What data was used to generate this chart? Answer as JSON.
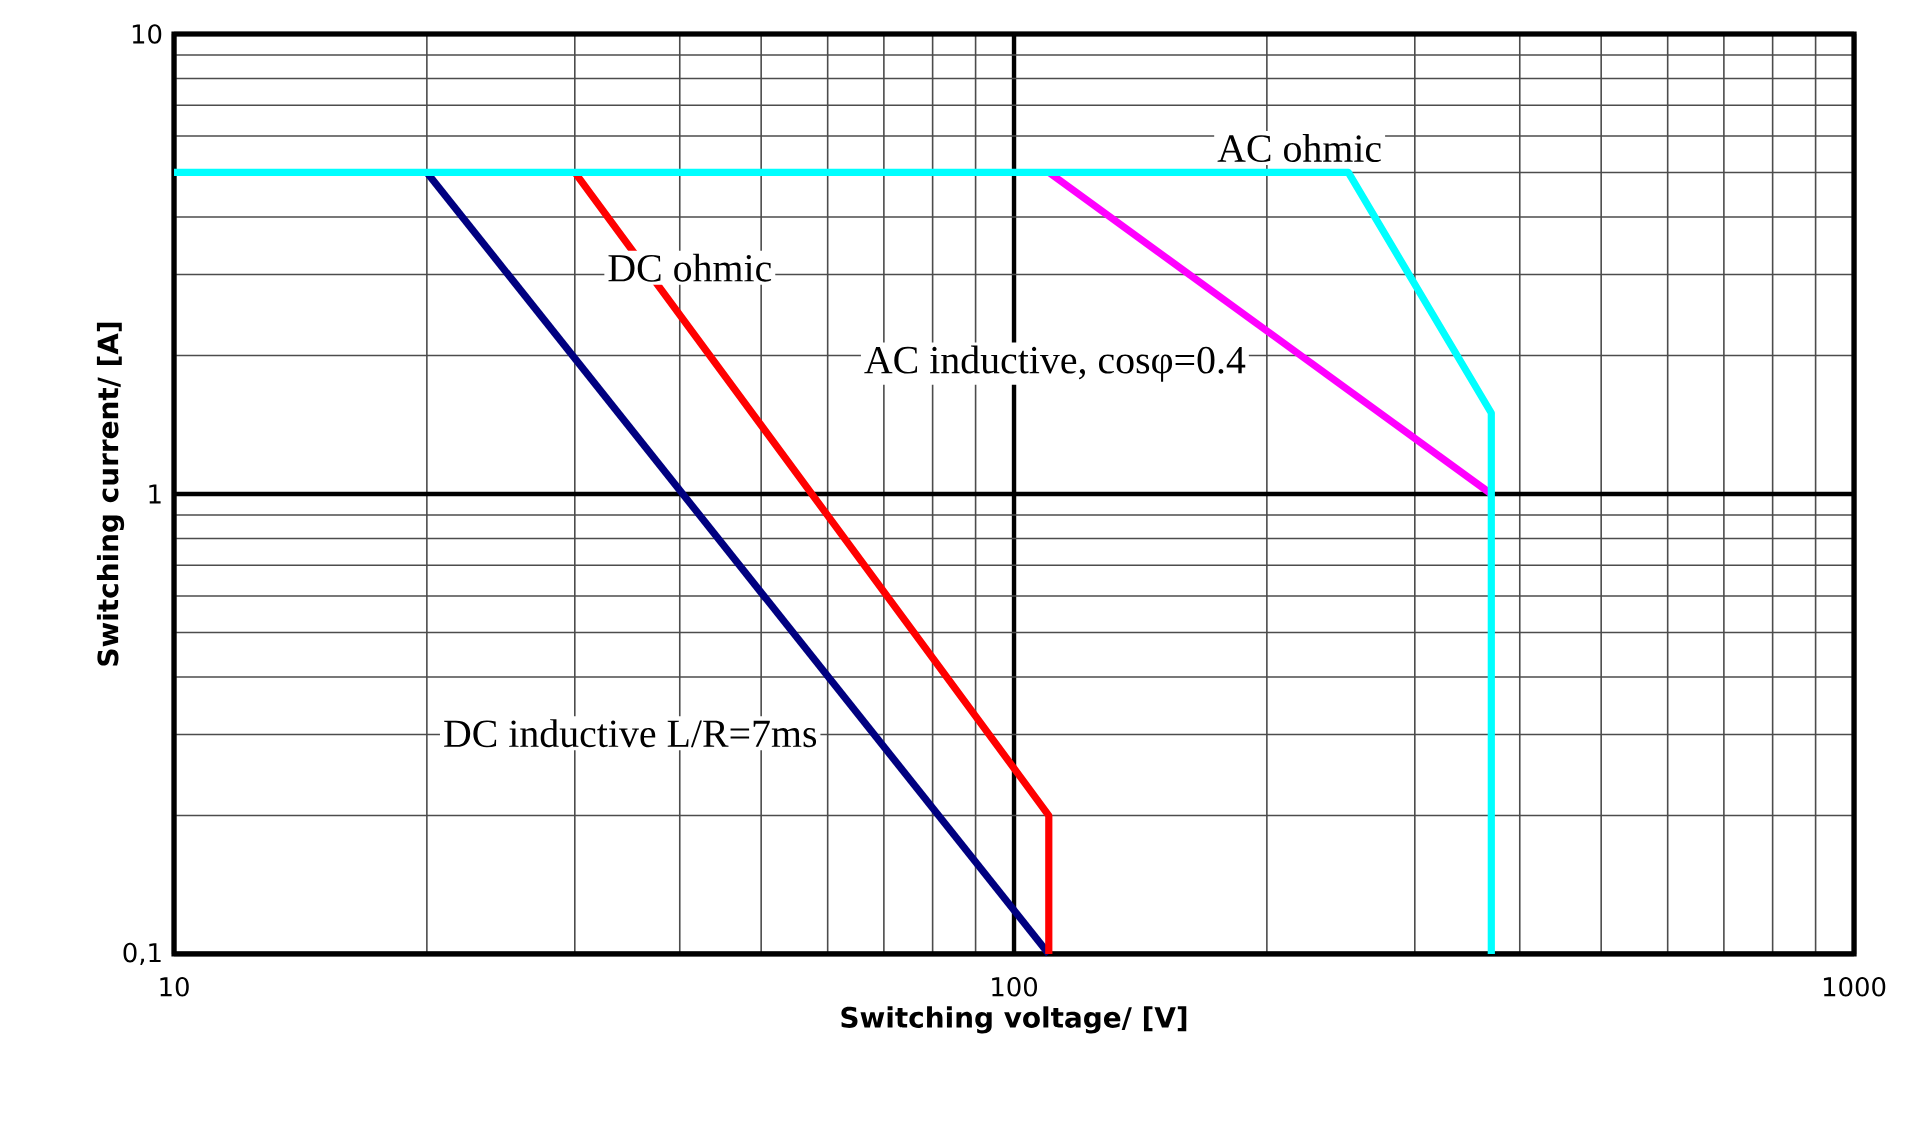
{
  "chart_data": {
    "type": "line",
    "xlabel": "Switching voltage/ [V]",
    "ylabel": "Switching current/ [A]",
    "log": "xy",
    "grid": true,
    "marker": "none",
    "line_style": "solid",
    "xlim": [
      10,
      1000
    ],
    "ylim": [
      0.1,
      10
    ],
    "xticks": [
      10,
      100,
      1000
    ],
    "yticks": [
      {
        "value": 0.1,
        "label": "0,1"
      },
      1,
      10
    ],
    "series": [
      {
        "name": "DC inductive L/R=7ms",
        "color": "#000080",
        "x": [
          20,
          110
        ],
        "values": [
          5,
          0.1
        ]
      },
      {
        "name": "DC ohmic",
        "color": "#ff0000",
        "x": [
          30,
          110,
          110
        ],
        "values": [
          5,
          0.2,
          0.1
        ]
      },
      {
        "name": "AC inductive, cosφ=0.4",
        "color": "#ff00ff",
        "x": [
          110,
          370
        ],
        "values": [
          5,
          1
        ]
      },
      {
        "name": "AC ohmic",
        "color": "#00ffff",
        "x": [
          10,
          250,
          370,
          370
        ],
        "values": [
          5,
          5,
          1.5,
          0.1
        ]
      }
    ]
  }
}
